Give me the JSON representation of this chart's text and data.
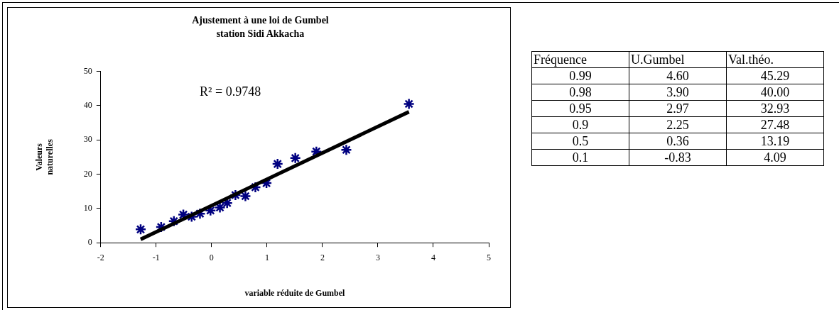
{
  "chart_data": [
    {
      "type": "scatter",
      "title": "Ajustement à une loi de Gumbel",
      "subtitle": "station Sidi Akkacha",
      "xlabel": "variable réduite de Gumbel",
      "ylabel": "Valeurs naturelles",
      "annotations": [
        "R² = 0.9748"
      ],
      "xlim": [
        -2,
        5
      ],
      "xticks": [
        -2,
        -1,
        0,
        1,
        2,
        3,
        4,
        5
      ],
      "ylim": [
        0,
        50
      ],
      "yticks": [
        0,
        10,
        20,
        30,
        40,
        50
      ],
      "grid": false,
      "legend": false,
      "marker": "cross",
      "series": [
        {
          "color": "#000080",
          "x": [
            -1.28,
            -0.91,
            -0.68,
            -0.51,
            -0.36,
            -0.21,
            -0.02,
            0.15,
            0.28,
            0.43,
            0.61,
            0.79,
            0.99,
            1.19,
            1.51,
            1.89,
            2.43,
            3.56
          ],
          "values": [
            3.9,
            4.6,
            6.3,
            8.2,
            7.6,
            8.5,
            9.4,
            10.3,
            11.6,
            13.9,
            13.6,
            16.2,
            17.4,
            23.0,
            24.7,
            26.6,
            27.1,
            40.5
          ]
        },
        {
          "type": "line",
          "marker": "none",
          "color": "#000000",
          "x": [
            -1.28,
            3.56
          ],
          "values": [
            1.0,
            38.2
          ]
        }
      ]
    },
    {
      "type": "other",
      "categories": [
        "Fréquence",
        "U.Gumbel",
        "Val.théo."
      ],
      "cell_labels": [
        [
          "0.99",
          "4.60",
          "45.29"
        ],
        [
          "0.98",
          "3.90",
          "40.00"
        ],
        [
          "0.95",
          "2.97",
          "32.93"
        ],
        [
          "0.9",
          "2.25",
          "27.48"
        ],
        [
          "0.5",
          "0.36",
          "13.19"
        ],
        [
          "0.1",
          "-0.83",
          "4.09"
        ]
      ]
    }
  ]
}
